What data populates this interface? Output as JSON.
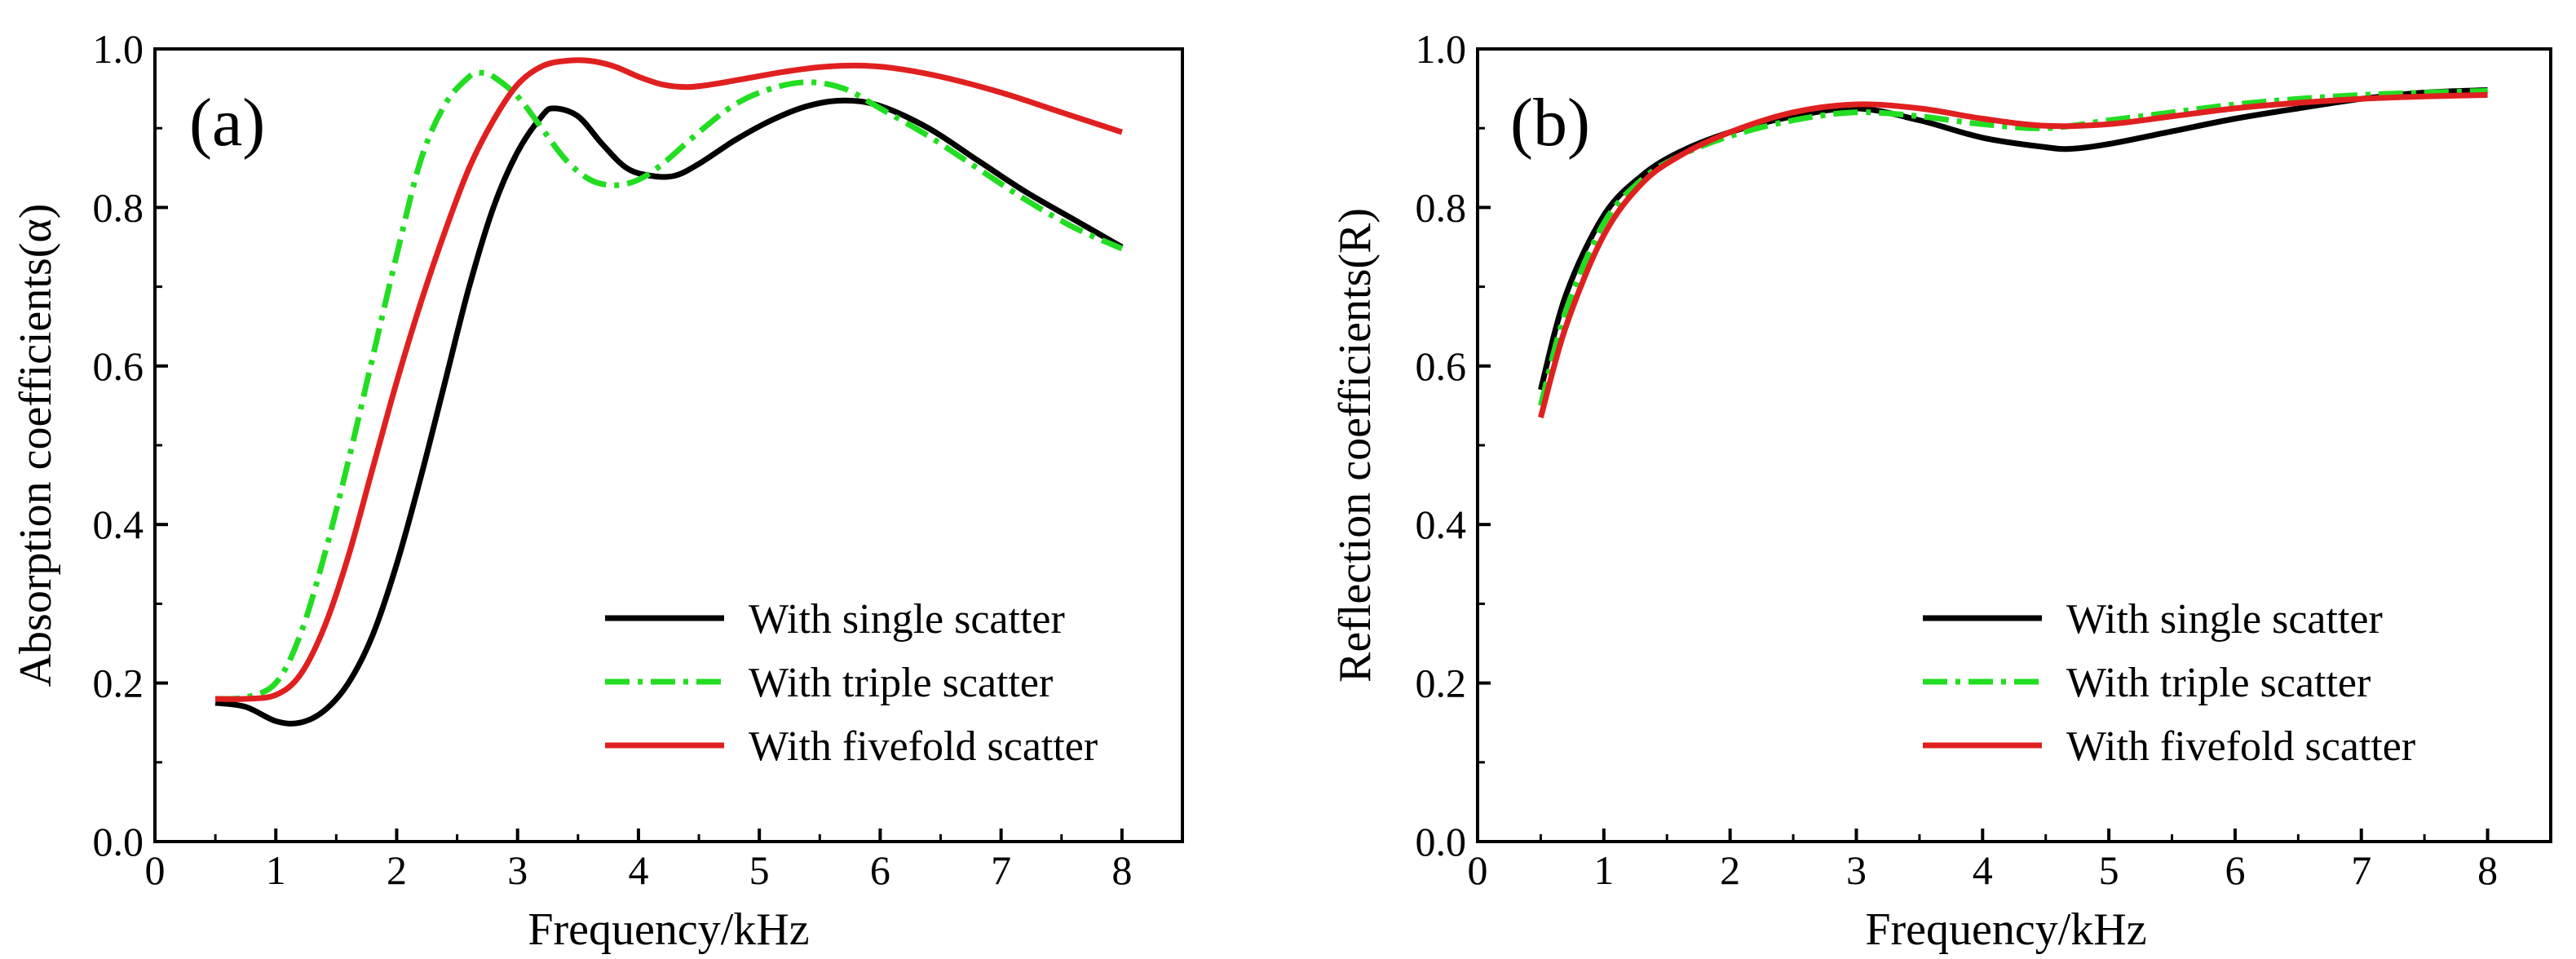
{
  "chart_data": [
    {
      "type": "line",
      "panel_label": "(a)",
      "xlabel": "Frequency/kHz",
      "ylabel": "Absorption coefficients(α)",
      "xlim": [
        0,
        8.5
      ],
      "ylim": [
        0.0,
        1.0
      ],
      "xticks": [
        0,
        1,
        2,
        3,
        4,
        5,
        6,
        7,
        8
      ],
      "yticks": [
        0.0,
        0.2,
        0.4,
        0.6,
        0.8,
        1.0
      ],
      "xtick_labels": [
        "0",
        "1",
        "2",
        "3",
        "4",
        "5",
        "6",
        "7",
        "8"
      ],
      "ytick_labels": [
        "0.0",
        "0.2",
        "0.4",
        "0.6",
        "0.8",
        "1.0"
      ],
      "legend_position": "bottom-right",
      "series": [
        {
          "name": "With single scatter",
          "color": "#000000",
          "style": "solid",
          "x": [
            0.5,
            0.75,
            1.0,
            1.2,
            1.4,
            1.6,
            1.8,
            2.0,
            2.2,
            2.4,
            2.6,
            2.8,
            3.0,
            3.2,
            3.3,
            3.5,
            3.7,
            3.9,
            4.1,
            4.3,
            4.5,
            4.8,
            5.1,
            5.4,
            5.7,
            6.0,
            6.4,
            6.8,
            7.2,
            7.6,
            8.0
          ],
          "y": [
            0.175,
            0.17,
            0.152,
            0.15,
            0.165,
            0.2,
            0.26,
            0.35,
            0.46,
            0.58,
            0.7,
            0.8,
            0.87,
            0.915,
            0.925,
            0.915,
            0.88,
            0.85,
            0.84,
            0.84,
            0.855,
            0.885,
            0.91,
            0.928,
            0.935,
            0.928,
            0.9,
            0.86,
            0.82,
            0.785,
            0.75
          ]
        },
        {
          "name": "With triple scatter",
          "color": "#22dd22",
          "style": "dashdot",
          "x": [
            0.5,
            0.75,
            1.0,
            1.2,
            1.4,
            1.6,
            1.8,
            2.0,
            2.2,
            2.4,
            2.6,
            2.7,
            2.8,
            3.0,
            3.2,
            3.4,
            3.6,
            3.8,
            4.0,
            4.2,
            4.5,
            4.8,
            5.1,
            5.4,
            5.7,
            6.0,
            6.4,
            6.8,
            7.2,
            7.6,
            8.0
          ],
          "y": [
            0.18,
            0.182,
            0.2,
            0.26,
            0.36,
            0.48,
            0.61,
            0.74,
            0.86,
            0.93,
            0.965,
            0.97,
            0.965,
            0.94,
            0.9,
            0.86,
            0.835,
            0.828,
            0.835,
            0.855,
            0.895,
            0.93,
            0.95,
            0.958,
            0.95,
            0.925,
            0.89,
            0.85,
            0.81,
            0.775,
            0.748
          ]
        },
        {
          "name": "With fivefold scatter",
          "color": "#e02020",
          "style": "solid",
          "x": [
            0.5,
            0.75,
            1.0,
            1.2,
            1.4,
            1.6,
            1.8,
            2.0,
            2.2,
            2.4,
            2.6,
            2.8,
            3.0,
            3.2,
            3.4,
            3.6,
            3.8,
            4.0,
            4.2,
            4.4,
            4.6,
            4.9,
            5.2,
            5.5,
            5.8,
            6.1,
            6.5,
            7.0,
            7.5,
            8.0
          ],
          "y": [
            0.18,
            0.18,
            0.185,
            0.21,
            0.27,
            0.36,
            0.47,
            0.58,
            0.68,
            0.77,
            0.85,
            0.91,
            0.955,
            0.978,
            0.985,
            0.985,
            0.978,
            0.965,
            0.955,
            0.952,
            0.955,
            0.963,
            0.971,
            0.977,
            0.979,
            0.976,
            0.965,
            0.945,
            0.92,
            0.895
          ]
        }
      ]
    },
    {
      "type": "line",
      "panel_label": "(b)",
      "xlabel": "Frequency/kHz",
      "ylabel": "Reflection coefficients(R)",
      "xlim": [
        0,
        8.5
      ],
      "ylim": [
        0.0,
        1.0
      ],
      "xticks": [
        0,
        1,
        2,
        3,
        4,
        5,
        6,
        7,
        8
      ],
      "yticks": [
        0.0,
        0.2,
        0.4,
        0.6,
        0.8,
        1.0
      ],
      "xtick_labels": [
        "0",
        "1",
        "2",
        "3",
        "4",
        "5",
        "6",
        "7",
        "8"
      ],
      "ytick_labels": [
        "0.0",
        "0.2",
        "0.4",
        "0.6",
        "0.8",
        "1.0"
      ],
      "legend_position": "bottom-right",
      "series": [
        {
          "name": "With single scatter",
          "color": "#000000",
          "style": "solid",
          "x": [
            0.5,
            0.7,
            1.0,
            1.3,
            1.6,
            2.0,
            2.5,
            3.0,
            3.5,
            4.0,
            4.5,
            4.7,
            5.0,
            5.5,
            6.0,
            6.5,
            7.0,
            7.5,
            8.0
          ],
          "y": [
            0.57,
            0.69,
            0.79,
            0.84,
            0.87,
            0.895,
            0.915,
            0.925,
            0.91,
            0.888,
            0.876,
            0.874,
            0.88,
            0.896,
            0.912,
            0.925,
            0.937,
            0.945,
            0.948
          ]
        },
        {
          "name": "With triple scatter",
          "color": "#22dd22",
          "style": "dashdot",
          "x": [
            0.5,
            0.7,
            1.0,
            1.3,
            1.6,
            2.0,
            2.5,
            3.0,
            3.5,
            4.0,
            4.5,
            5.0,
            5.5,
            6.0,
            6.5,
            7.0,
            7.5,
            8.0
          ],
          "y": [
            0.55,
            0.67,
            0.78,
            0.835,
            0.865,
            0.89,
            0.91,
            0.92,
            0.915,
            0.905,
            0.9,
            0.91,
            0.92,
            0.93,
            0.937,
            0.942,
            0.945,
            0.947
          ]
        },
        {
          "name": "With fivefold scatter",
          "color": "#e02020",
          "style": "solid",
          "x": [
            0.5,
            0.7,
            1.0,
            1.3,
            1.6,
            2.0,
            2.5,
            3.0,
            3.5,
            4.0,
            4.5,
            5.0,
            5.5,
            6.0,
            6.5,
            7.0,
            7.5,
            8.0
          ],
          "y": [
            0.535,
            0.65,
            0.765,
            0.83,
            0.865,
            0.895,
            0.92,
            0.93,
            0.925,
            0.912,
            0.903,
            0.905,
            0.915,
            0.925,
            0.932,
            0.937,
            0.94,
            0.942
          ]
        }
      ]
    }
  ]
}
